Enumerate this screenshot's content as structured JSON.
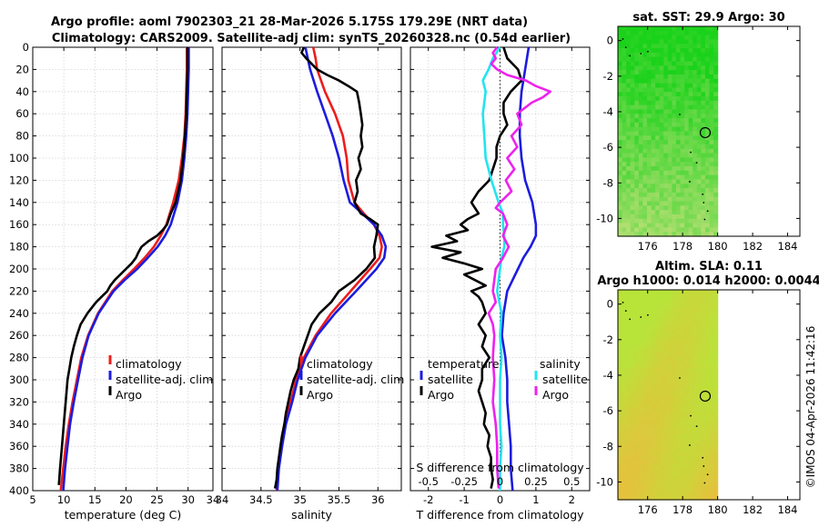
{
  "figure": {
    "title_line1": "Argo profile: aoml 7902303_21 28-Mar-2026 5.175S 179.29E (NRT data)",
    "title_line2": "Climatology: CARS2009. Satellite-adj clim: synTS_20260328.nc (0.54d earlier)",
    "watermark": "©IMOS 04-Apr-2026 11:42:16"
  },
  "colors": {
    "climatology": "#ee1c1c",
    "satellite": "#1c1ce0",
    "argo": "#000000",
    "sal_diff_satellite": "#22e4f0",
    "sal_diff_argo": "#ee22ee",
    "grid": "#d4d4d4",
    "land": "#ffffff"
  },
  "chart_data": [
    {
      "id": "temperature",
      "type": "line",
      "xlabel": "temperature (deg C)",
      "ylabel": "",
      "xlim": [
        5,
        34
      ],
      "ylim": [
        400,
        0
      ],
      "xticks": [
        5,
        10,
        15,
        20,
        25,
        30,
        34
      ],
      "xtick_labels": [
        "5",
        "10",
        "15",
        "20",
        "25",
        "30",
        "34"
      ],
      "yticks": [
        0,
        20,
        40,
        60,
        80,
        100,
        120,
        140,
        160,
        180,
        200,
        220,
        240,
        260,
        280,
        300,
        320,
        340,
        360,
        380,
        400
      ],
      "ytick_labels": [
        "0",
        "20",
        "40",
        "60",
        "80",
        "100",
        "120",
        "140",
        "160",
        "180",
        "200",
        "220",
        "240",
        "260",
        "280",
        "300",
        "320",
        "340",
        "360",
        "380",
        "400"
      ],
      "legend": [
        "climatology",
        "satellite-adj. clim",
        "Argo"
      ],
      "legend_location": "lower-right",
      "series": [
        {
          "name": "climatology",
          "color_key": "climatology",
          "depth": [
            0,
            20,
            40,
            60,
            80,
            100,
            120,
            140,
            160,
            170,
            180,
            190,
            200,
            210,
            220,
            240,
            260,
            280,
            300,
            320,
            340,
            360,
            380,
            400
          ],
          "values": [
            29.8,
            29.8,
            29.7,
            29.6,
            29.4,
            29.0,
            28.5,
            27.6,
            26.5,
            25.6,
            24.5,
            23.0,
            21.3,
            19.5,
            17.8,
            15.5,
            13.9,
            12.8,
            12.1,
            11.4,
            10.8,
            10.3,
            9.9,
            9.5
          ]
        },
        {
          "name": "satellite-adj. clim",
          "color_key": "satellite",
          "depth": [
            0,
            20,
            40,
            60,
            80,
            100,
            120,
            140,
            160,
            170,
            180,
            190,
            200,
            210,
            220,
            240,
            260,
            280,
            300,
            320,
            340,
            360,
            380,
            400
          ],
          "values": [
            30.1,
            30.1,
            30.0,
            29.9,
            29.7,
            29.4,
            29.0,
            28.3,
            27.2,
            26.3,
            25.1,
            23.5,
            21.8,
            19.8,
            18.0,
            15.6,
            14.0,
            13.0,
            12.3,
            11.6,
            11.0,
            10.6,
            10.2,
            9.9
          ]
        },
        {
          "name": "Argo",
          "color_key": "argo",
          "depth": [
            0,
            20,
            40,
            60,
            80,
            100,
            120,
            140,
            150,
            160,
            165,
            170,
            175,
            180,
            185,
            190,
            195,
            200,
            210,
            215,
            220,
            230,
            240,
            250,
            260,
            270,
            280,
            290,
            300,
            320,
            340,
            360,
            380,
            395
          ],
          "values": [
            29.9,
            29.9,
            29.8,
            29.7,
            29.5,
            29.2,
            28.8,
            28.0,
            27.2,
            26.6,
            25.9,
            25.0,
            23.6,
            22.5,
            22.0,
            21.6,
            20.9,
            20.0,
            18.2,
            17.5,
            17.0,
            15.2,
            13.8,
            12.7,
            12.1,
            11.6,
            11.2,
            10.9,
            10.6,
            10.3,
            10.0,
            9.7,
            9.4,
            9.2
          ]
        }
      ]
    },
    {
      "id": "salinity",
      "type": "line",
      "xlabel": "salinity",
      "xlim": [
        34.0,
        36.3
      ],
      "ylim": [
        400,
        0
      ],
      "xticks": [
        34.0,
        34.5,
        35.0,
        35.5,
        36.0
      ],
      "xtick_labels": [
        "34",
        "34.5",
        "35",
        "35.5",
        "36"
      ],
      "legend": [
        "climatology",
        "satellite-adj. clim",
        "Argo"
      ],
      "legend_location": "lower-right",
      "series": [
        {
          "name": "climatology",
          "color_key": "climatology",
          "depth": [
            0,
            10,
            20,
            40,
            60,
            80,
            100,
            120,
            140,
            150,
            160,
            170,
            180,
            190,
            200,
            220,
            240,
            260,
            280,
            300,
            320,
            340,
            360,
            380,
            400
          ],
          "values": [
            35.17,
            35.2,
            35.22,
            35.32,
            35.45,
            35.55,
            35.6,
            35.62,
            35.7,
            35.82,
            35.95,
            36.02,
            36.05,
            36.02,
            35.9,
            35.65,
            35.4,
            35.2,
            35.05,
            34.95,
            34.88,
            34.8,
            34.75,
            34.72,
            34.7
          ]
        },
        {
          "name": "satellite-adj. clim",
          "color_key": "satellite",
          "depth": [
            0,
            10,
            20,
            40,
            60,
            80,
            100,
            120,
            140,
            150,
            160,
            170,
            180,
            190,
            200,
            220,
            240,
            260,
            280,
            300,
            320,
            340,
            360,
            380,
            400
          ],
          "values": [
            35.07,
            35.1,
            35.13,
            35.22,
            35.32,
            35.42,
            35.5,
            35.56,
            35.64,
            35.8,
            35.95,
            36.05,
            36.1,
            36.08,
            35.98,
            35.72,
            35.45,
            35.22,
            35.07,
            34.97,
            34.9,
            34.82,
            34.77,
            34.73,
            34.71
          ]
        },
        {
          "name": "Argo",
          "color_key": "argo",
          "depth": [
            0,
            5,
            10,
            15,
            20,
            25,
            30,
            35,
            40,
            50,
            60,
            70,
            80,
            90,
            100,
            110,
            120,
            130,
            140,
            150,
            155,
            160,
            170,
            180,
            190,
            200,
            210,
            220,
            230,
            240,
            250,
            260,
            270,
            280,
            290,
            300,
            310,
            320,
            330,
            340,
            350,
            360,
            370,
            380,
            390,
            398
          ],
          "values": [
            35.05,
            35.02,
            35.08,
            35.15,
            35.22,
            35.35,
            35.5,
            35.62,
            35.73,
            35.76,
            35.78,
            35.8,
            35.78,
            35.8,
            35.75,
            35.78,
            35.72,
            35.74,
            35.7,
            35.78,
            35.9,
            36.0,
            35.98,
            35.95,
            35.96,
            35.85,
            35.7,
            35.5,
            35.4,
            35.25,
            35.15,
            35.1,
            35.05,
            35.0,
            34.98,
            34.92,
            34.88,
            34.85,
            34.82,
            34.8,
            34.77,
            34.75,
            34.73,
            34.71,
            34.7,
            34.68
          ]
        }
      ]
    },
    {
      "id": "difference",
      "type": "line",
      "xlabel": "T difference from climatology",
      "top_axis_label": "S difference from climatology",
      "xlim": [
        -2.5,
        2.5
      ],
      "ylim": [
        400,
        0
      ],
      "xticks": [
        -2,
        -1,
        0,
        1,
        2
      ],
      "xtick_labels": [
        "-2",
        "-1",
        "0",
        "1",
        "2"
      ],
      "sal_xlim": [
        -0.625,
        0.625
      ],
      "sal_xticks": [
        -0.5,
        -0.25,
        0,
        0.25,
        0.5
      ],
      "sal_xtick_labels": [
        "-0.5",
        "-0.25",
        "0",
        "0.25",
        "0.5"
      ],
      "legend_temperature": {
        "heading": "temperature",
        "entries": [
          "satellite",
          "Argo"
        ]
      },
      "legend_salinity": {
        "heading": "salinity",
        "entries": [
          "satellite",
          "Argo"
        ]
      },
      "series": [
        {
          "name": "T satellite",
          "color_key": "satellite",
          "depth": [
            0,
            20,
            40,
            60,
            80,
            100,
            120,
            140,
            160,
            170,
            180,
            190,
            200,
            210,
            220,
            240,
            260,
            280,
            300,
            320,
            340,
            360,
            380,
            400
          ],
          "values": [
            0.8,
            0.7,
            0.6,
            0.55,
            0.55,
            0.6,
            0.7,
            0.9,
            1.0,
            1.0,
            0.85,
            0.65,
            0.5,
            0.35,
            0.2,
            0.1,
            0.05,
            0.15,
            0.2,
            0.2,
            0.25,
            0.3,
            0.3,
            0.35
          ]
        },
        {
          "name": "T Argo",
          "color_key": "argo",
          "depth": [
            0,
            10,
            20,
            30,
            40,
            50,
            60,
            70,
            80,
            90,
            100,
            110,
            120,
            130,
            140,
            150,
            155,
            160,
            165,
            170,
            175,
            180,
            185,
            190,
            195,
            200,
            205,
            210,
            215,
            220,
            225,
            230,
            240,
            250,
            260,
            270,
            280,
            290,
            300,
            310,
            320,
            330,
            340,
            350,
            360,
            370,
            380,
            390,
            398
          ],
          "values": [
            0.1,
            0.2,
            0.5,
            0.6,
            0.3,
            0.1,
            0.1,
            0.2,
            0.0,
            -0.1,
            -0.1,
            -0.2,
            -0.3,
            -0.6,
            -0.8,
            -0.6,
            -0.9,
            -1.1,
            -0.9,
            -1.5,
            -1.2,
            -1.9,
            -1.1,
            -1.6,
            -1.0,
            -0.5,
            -1.0,
            -0.7,
            -0.4,
            -0.8,
            -0.6,
            -0.5,
            -0.4,
            -0.6,
            -0.4,
            -0.5,
            -0.3,
            -0.5,
            -0.5,
            -0.6,
            -0.5,
            -0.4,
            -0.45,
            -0.3,
            -0.35,
            -0.25,
            -0.25,
            -0.2,
            -0.25
          ]
        },
        {
          "name": "S satellite",
          "color_key": "sal_diff_satellite",
          "depth": [
            0,
            10,
            20,
            30,
            40,
            60,
            80,
            100,
            120,
            140,
            150,
            160,
            170,
            180,
            190,
            200,
            220,
            240,
            260,
            280,
            300,
            320,
            340,
            360,
            380,
            400
          ],
          "values": [
            0.0,
            -0.05,
            -0.08,
            -0.12,
            -0.1,
            -0.12,
            -0.11,
            -0.1,
            -0.06,
            -0.01,
            0.02,
            0.02,
            0.03,
            0.03,
            0.01,
            0.0,
            -0.02,
            0.01,
            0.0,
            0.01,
            0.0,
            0.0,
            0.0,
            0.01,
            0.0,
            0.0
          ]
        },
        {
          "name": "S Argo",
          "color_key": "sal_diff_argo",
          "depth": [
            0,
            5,
            10,
            15,
            20,
            25,
            30,
            35,
            40,
            45,
            50,
            60,
            70,
            80,
            90,
            100,
            110,
            120,
            130,
            140,
            145,
            150,
            160,
            170,
            180,
            190,
            200,
            210,
            220,
            230,
            240,
            250,
            260,
            280,
            300,
            320,
            340,
            360,
            380,
            398
          ],
          "values": [
            -0.02,
            -0.05,
            -0.03,
            -0.06,
            -0.02,
            0.05,
            0.18,
            0.25,
            0.35,
            0.3,
            0.22,
            0.12,
            0.15,
            0.08,
            0.12,
            0.05,
            0.1,
            0.04,
            0.08,
            0.0,
            -0.03,
            0.02,
            0.05,
            0.02,
            0.06,
            0.02,
            -0.03,
            -0.04,
            -0.05,
            -0.03,
            -0.08,
            -0.05,
            -0.04,
            -0.05,
            -0.04,
            -0.05,
            -0.03,
            -0.02,
            -0.02,
            -0.01
          ]
        }
      ]
    },
    {
      "id": "sst_map",
      "type": "heatmap",
      "title": "sat. SST: 29.9 Argo: 30",
      "xlim": [
        174.3,
        184.7
      ],
      "ylim": [
        -11,
        0.8
      ],
      "xticks": [
        176,
        178,
        180,
        182,
        184
      ],
      "xtick_labels": [
        "176",
        "178",
        "180",
        "182",
        "184"
      ],
      "yticks": [
        0,
        -2,
        -4,
        -6,
        -8,
        -10
      ],
      "ytick_labels": [
        "0",
        "-2",
        "-4",
        "-6",
        "-8",
        "-10"
      ],
      "data_lon_range": [
        174.3,
        180.0
      ],
      "argo_position": {
        "lon": 179.29,
        "lat": -5.175
      },
      "colors_low_high": [
        "#bfe07a",
        "#1bd21b"
      ],
      "land_mask": "east of 180"
    },
    {
      "id": "sla_map",
      "type": "heatmap",
      "title_line1": "Altim. SLA: 0.11",
      "title_line2": "Argo h1000: 0.014 h2000: 0.0044",
      "xlim": [
        174.3,
        184.7
      ],
      "ylim": [
        -11,
        0.8
      ],
      "xticks": [
        176,
        178,
        180,
        182,
        184
      ],
      "xtick_labels": [
        "176",
        "178",
        "180",
        "182",
        "184"
      ],
      "yticks": [
        0,
        -2,
        -4,
        -6,
        -8,
        -10
      ],
      "ytick_labels": [
        "0",
        "-2",
        "-4",
        "-6",
        "-8",
        "-10"
      ],
      "data_lon_range": [
        174.3,
        180.0
      ],
      "argo_position": {
        "lon": 179.29,
        "lat": -5.175
      },
      "colors_low_high": [
        "#e4c23c",
        "#b8e43a"
      ],
      "land_mask": "east of 180"
    }
  ]
}
